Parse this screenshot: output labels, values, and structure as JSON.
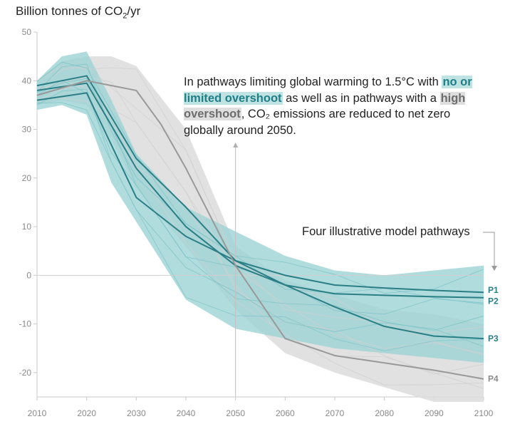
{
  "chart_data": {
    "type": "line",
    "ylabel_prefix": "Billion tonnes of CO",
    "ylabel_sub": "2",
    "ylabel_suffix": "/yr",
    "xlim": [
      2010,
      2100
    ],
    "ylim": [
      -25,
      50
    ],
    "x_ticks": [
      2010,
      2020,
      2030,
      2040,
      2050,
      2060,
      2070,
      2080,
      2090,
      2100
    ],
    "y_ticks": [
      50,
      40,
      30,
      20,
      10,
      0,
      -10,
      -20
    ],
    "annotation": {
      "part1": "In pathways limiting global warming to 1.5°C with ",
      "highlight_teal": "no or limited overshoot",
      "part2": " as well as in pathways with a ",
      "highlight_grey": "high overshoot",
      "part3": ", CO₂ emissions are reduced to net zero globally around 2050."
    },
    "legend_note": "Four illustrative model pathways",
    "colors": {
      "teal_band": "#9ed3d6",
      "teal_line": "#3a9a9f",
      "teal_dark": "#2a7f86",
      "grey_band": "#dcdcdc",
      "grey_line": "#aaaaaa",
      "grey_dark": "#999999",
      "p_teal_label": "#2a7f86",
      "p_grey_label": "#8a8a8a"
    },
    "bands": [
      {
        "name": "high overshoot range",
        "color": "grey",
        "x": [
          2010,
          2015,
          2020,
          2025,
          2030,
          2040,
          2050,
          2060,
          2070,
          2080,
          2090,
          2100
        ],
        "upper": [
          40,
          44,
          45,
          45,
          43,
          30,
          6,
          -1,
          -4,
          -7,
          -8,
          -10
        ],
        "lower": [
          35,
          36,
          35,
          28,
          18,
          6,
          -7,
          -16,
          -20,
          -23,
          -26,
          -26
        ]
      },
      {
        "name": "no or limited overshoot range",
        "color": "teal",
        "x": [
          2010,
          2015,
          2020,
          2025,
          2030,
          2040,
          2050,
          2060,
          2070,
          2080,
          2090,
          2100
        ],
        "upper": [
          40,
          45,
          46,
          36,
          25,
          14,
          9,
          4,
          1,
          0,
          1,
          2
        ],
        "lower": [
          34,
          35,
          33,
          19,
          11,
          -5,
          -11,
          -13,
          -15,
          -16,
          -17,
          -18
        ]
      }
    ],
    "series": [
      {
        "name": "P1",
        "color": "teal",
        "x": [
          2010,
          2020,
          2030,
          2040,
          2050,
          2060,
          2070,
          2080,
          2090,
          2100
        ],
        "values": [
          36,
          37.5,
          16,
          8,
          3,
          0,
          -2,
          -2.6,
          -3.1,
          -3.5
        ]
      },
      {
        "name": "P2",
        "color": "teal",
        "x": [
          2010,
          2020,
          2030,
          2040,
          2050,
          2060,
          2070,
          2080,
          2090,
          2100
        ],
        "values": [
          38,
          39.5,
          22,
          10,
          2,
          -2,
          -3.8,
          -4.1,
          -4.4,
          -4.6
        ]
      },
      {
        "name": "P3",
        "color": "teal",
        "x": [
          2010,
          2020,
          2030,
          2040,
          2050,
          2060,
          2070,
          2080,
          2090,
          2100
        ],
        "values": [
          39,
          41,
          24,
          14,
          3,
          -2,
          -6.5,
          -10.5,
          -12.5,
          -13
        ]
      },
      {
        "name": "P4",
        "color": "grey",
        "x": [
          2010,
          2020,
          2030,
          2035,
          2040,
          2050,
          2060,
          2070,
          2080,
          2090,
          2100
        ],
        "values": [
          37,
          40,
          38,
          31,
          22,
          2,
          -13,
          -16.5,
          -18,
          -19.5,
          -21.3
        ]
      }
    ]
  }
}
